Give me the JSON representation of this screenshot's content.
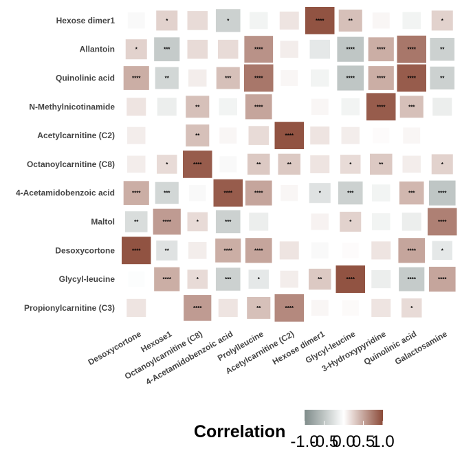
{
  "chart_data": {
    "type": "heatmap",
    "rows": [
      "Hexose dimer1",
      "Allantoin",
      "Quinolinic acid",
      "N-Methylnicotinamide",
      "Acetylcarnitine (C2)",
      "Octanoylcarnitine (C8)",
      "4-Acetamidobenzoic acid",
      "Maltol",
      "Desoxycortone",
      "Glycyl-leucine",
      "Propionylcarnitine (C3)"
    ],
    "columns": [
      "Desoxycortone",
      "Hexose1",
      "Octanoylcarnitine (C8)",
      "4-Acetamidobenzoic acid",
      "Prolylleucine",
      "Acetylcarnitine (C2)",
      "Hexose dimer1",
      "Glycyl-leucine",
      "3-Hydroxypyridine",
      "Quinolinic acid",
      "Galactosamine"
    ],
    "values": [
      [
        -0.05,
        0.25,
        0.2,
        -0.4,
        -0.1,
        0.15,
        0.95,
        0.35,
        0.05,
        -0.1,
        0.25
      ],
      [
        0.25,
        -0.45,
        0.2,
        0.2,
        0.6,
        0.1,
        -0.2,
        -0.5,
        0.45,
        0.75,
        -0.4
      ],
      [
        0.45,
        -0.35,
        0.1,
        0.35,
        0.75,
        0.05,
        -0.1,
        -0.5,
        0.45,
        0.9,
        -0.4
      ],
      [
        0.15,
        -0.15,
        0.35,
        -0.1,
        0.5,
        0.0,
        0.05,
        -0.1,
        0.9,
        0.35,
        -0.15
      ],
      [
        0.1,
        0.0,
        0.35,
        0.05,
        0.2,
        0.95,
        0.15,
        0.1,
        0.02,
        0.05,
        0.0
      ],
      [
        0.1,
        0.2,
        0.9,
        -0.05,
        0.3,
        0.3,
        0.15,
        0.2,
        0.3,
        0.1,
        0.25
      ],
      [
        0.45,
        -0.35,
        -0.05,
        0.9,
        0.5,
        0.05,
        -0.25,
        -0.4,
        -0.1,
        0.4,
        -0.5
      ],
      [
        -0.3,
        0.55,
        0.2,
        -0.4,
        -0.15,
        0.0,
        0.07,
        0.25,
        -0.1,
        -0.15,
        0.7
      ],
      [
        0.95,
        -0.25,
        0.1,
        0.45,
        0.5,
        0.15,
        -0.05,
        0.02,
        0.15,
        0.5,
        -0.2
      ],
      [
        -0.02,
        0.45,
        0.2,
        -0.4,
        -0.2,
        0.1,
        0.3,
        0.95,
        -0.15,
        -0.45,
        0.5
      ],
      [
        0.15,
        0.0,
        0.55,
        0.15,
        0.35,
        0.65,
        0.05,
        0.03,
        0.15,
        0.2,
        0.0
      ]
    ],
    "stars": [
      [
        "",
        "*",
        "",
        "*",
        "",
        "",
        "****",
        "**",
        "",
        "",
        "*"
      ],
      [
        "*",
        "***",
        "",
        "",
        "****",
        "",
        "",
        "****",
        "****",
        "****",
        "**"
      ],
      [
        "****",
        "**",
        "",
        "***",
        "****",
        "",
        "",
        "****",
        "****",
        "****",
        "**"
      ],
      [
        "",
        "",
        "**",
        "",
        "****",
        "",
        "",
        "",
        "****",
        "***",
        ""
      ],
      [
        "",
        "",
        "**",
        "",
        "",
        "****",
        "",
        "",
        "",
        "",
        ""
      ],
      [
        "",
        "*",
        "****",
        "",
        "**",
        "**",
        "",
        "*",
        "**",
        "",
        "*"
      ],
      [
        "****",
        "***",
        "",
        "****",
        "****",
        "",
        "*",
        "***",
        "",
        "***",
        "****"
      ],
      [
        "**",
        "****",
        "*",
        "***",
        "",
        "",
        "",
        "*",
        "",
        "",
        "****"
      ],
      [
        "****",
        "**",
        "",
        "****",
        "****",
        "",
        "",
        "",
        "",
        "****",
        "*"
      ],
      [
        "",
        "****",
        "*",
        "***",
        "*",
        "",
        "**",
        "****",
        "",
        "****",
        "****"
      ],
      [
        "",
        "",
        "****",
        "",
        "**",
        "****",
        "",
        "",
        "",
        "*",
        ""
      ]
    ],
    "legend": {
      "title": "Correlation",
      "ticks": [
        "-1.0",
        "-0.5",
        "0.0",
        "0.5",
        "1.0"
      ],
      "tick_values": [
        -1.0,
        -0.5,
        0.0,
        0.5,
        1.0
      ],
      "colors": {
        "low": "#7f8c8a",
        "mid": "#ffffff",
        "high": "#8b4a38"
      }
    }
  }
}
